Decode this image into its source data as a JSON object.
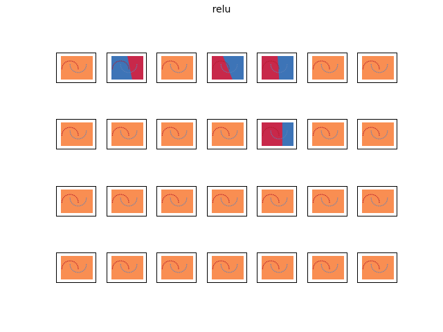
{
  "figure": {
    "title": "relu"
  },
  "colors": {
    "uniform": "#f98e52",
    "red": "#c8284a",
    "blue": "#3d74b7",
    "point_red": "#b2182b",
    "point_blue": "#5e82b8"
  },
  "chart_data": {
    "type": "grid-of-decision-boundaries",
    "rows": 4,
    "cols": 7,
    "panels": [
      {
        "row": 0,
        "col": 0,
        "fill": "uniform"
      },
      {
        "row": 0,
        "col": 1,
        "fill": "split",
        "left": "blue",
        "right": "red"
      },
      {
        "row": 0,
        "col": 2,
        "fill": "uniform"
      },
      {
        "row": 0,
        "col": 3,
        "fill": "split",
        "left": "red",
        "right": "blue"
      },
      {
        "row": 0,
        "col": 4,
        "fill": "split",
        "left": "red",
        "right": "blue"
      },
      {
        "row": 0,
        "col": 5,
        "fill": "uniform"
      },
      {
        "row": 0,
        "col": 6,
        "fill": "uniform"
      },
      {
        "row": 1,
        "col": 0,
        "fill": "uniform"
      },
      {
        "row": 1,
        "col": 1,
        "fill": "uniform"
      },
      {
        "row": 1,
        "col": 2,
        "fill": "uniform"
      },
      {
        "row": 1,
        "col": 3,
        "fill": "uniform"
      },
      {
        "row": 1,
        "col": 4,
        "fill": "split",
        "left": "red",
        "right": "blue"
      },
      {
        "row": 1,
        "col": 5,
        "fill": "uniform"
      },
      {
        "row": 1,
        "col": 6,
        "fill": "uniform"
      },
      {
        "row": 2,
        "col": 0,
        "fill": "uniform"
      },
      {
        "row": 2,
        "col": 1,
        "fill": "uniform"
      },
      {
        "row": 2,
        "col": 2,
        "fill": "uniform"
      },
      {
        "row": 2,
        "col": 3,
        "fill": "uniform"
      },
      {
        "row": 2,
        "col": 4,
        "fill": "uniform"
      },
      {
        "row": 2,
        "col": 5,
        "fill": "uniform"
      },
      {
        "row": 2,
        "col": 6,
        "fill": "uniform"
      },
      {
        "row": 3,
        "col": 0,
        "fill": "uniform"
      },
      {
        "row": 3,
        "col": 1,
        "fill": "uniform"
      },
      {
        "row": 3,
        "col": 2,
        "fill": "uniform"
      },
      {
        "row": 3,
        "col": 3,
        "fill": "uniform"
      },
      {
        "row": 3,
        "col": 4,
        "fill": "uniform"
      },
      {
        "row": 3,
        "col": 5,
        "fill": "uniform"
      },
      {
        "row": 3,
        "col": 6,
        "fill": "uniform"
      }
    ]
  }
}
